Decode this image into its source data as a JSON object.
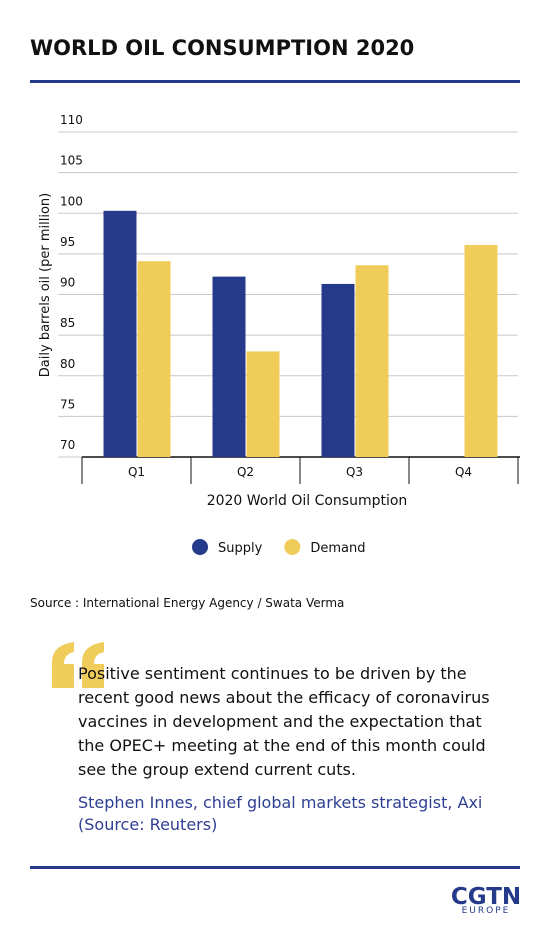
{
  "title": "WORLD OIL CONSUMPTION 2020",
  "chart_data": {
    "type": "bar",
    "x_label": "2020 World Oil Consumption",
    "y_label": "Daily barrels oil (per million)",
    "categories": [
      "Q1",
      "Q2",
      "Q3",
      "Q4"
    ],
    "series": [
      {
        "name": "Supply",
        "color": "#253a8a",
        "values": [
          100.3,
          92.2,
          91.3,
          null
        ]
      },
      {
        "name": "Demand",
        "color": "#f0cd5a",
        "values": [
          94.1,
          83,
          93.6,
          96.1
        ]
      }
    ],
    "ylim": [
      70,
      110
    ],
    "yticks": [
      70,
      75,
      80,
      85,
      90,
      95,
      100,
      105,
      110
    ],
    "grid": true,
    "legend": "bottom"
  },
  "source": "Source : International Energy Agency / Swata Verma",
  "quote": {
    "text": "Positive sentiment continues to be driven by the recent good news about the efficacy of coronavirus vaccines in development and the expectation that the OPEC+ meeting at the end of this month could see the group extend current cuts.",
    "attribution": "Stephen Innes, chief global markets strategist, Axi (Source: Reuters)"
  },
  "logo": {
    "name": "CGTN",
    "region": "EUROPE"
  }
}
